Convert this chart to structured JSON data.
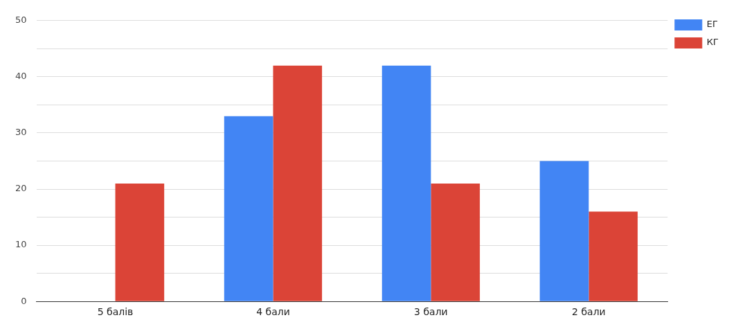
{
  "chart_data": {
    "type": "bar",
    "categories": [
      "5 балів",
      "4 бали",
      "3 бали",
      "2 бали"
    ],
    "series": [
      {
        "name": "ЕГ",
        "color": "#4285f4",
        "values": [
          0,
          33,
          42,
          25
        ]
      },
      {
        "name": "КГ",
        "color": "#db4437",
        "values": [
          21,
          42,
          21,
          16
        ]
      }
    ],
    "ylim": [
      0,
      50
    ],
    "yticks": [
      0,
      {
        "value": 5,
        "label": null
      },
      10,
      {
        "value": 15,
        "label": null
      },
      20,
      {
        "value": 25,
        "label": null
      },
      30,
      {
        "value": 35,
        "label": null
      },
      40,
      {
        "value": 45,
        "label": null
      },
      50
    ],
    "grid": "y",
    "legend": "top right"
  }
}
